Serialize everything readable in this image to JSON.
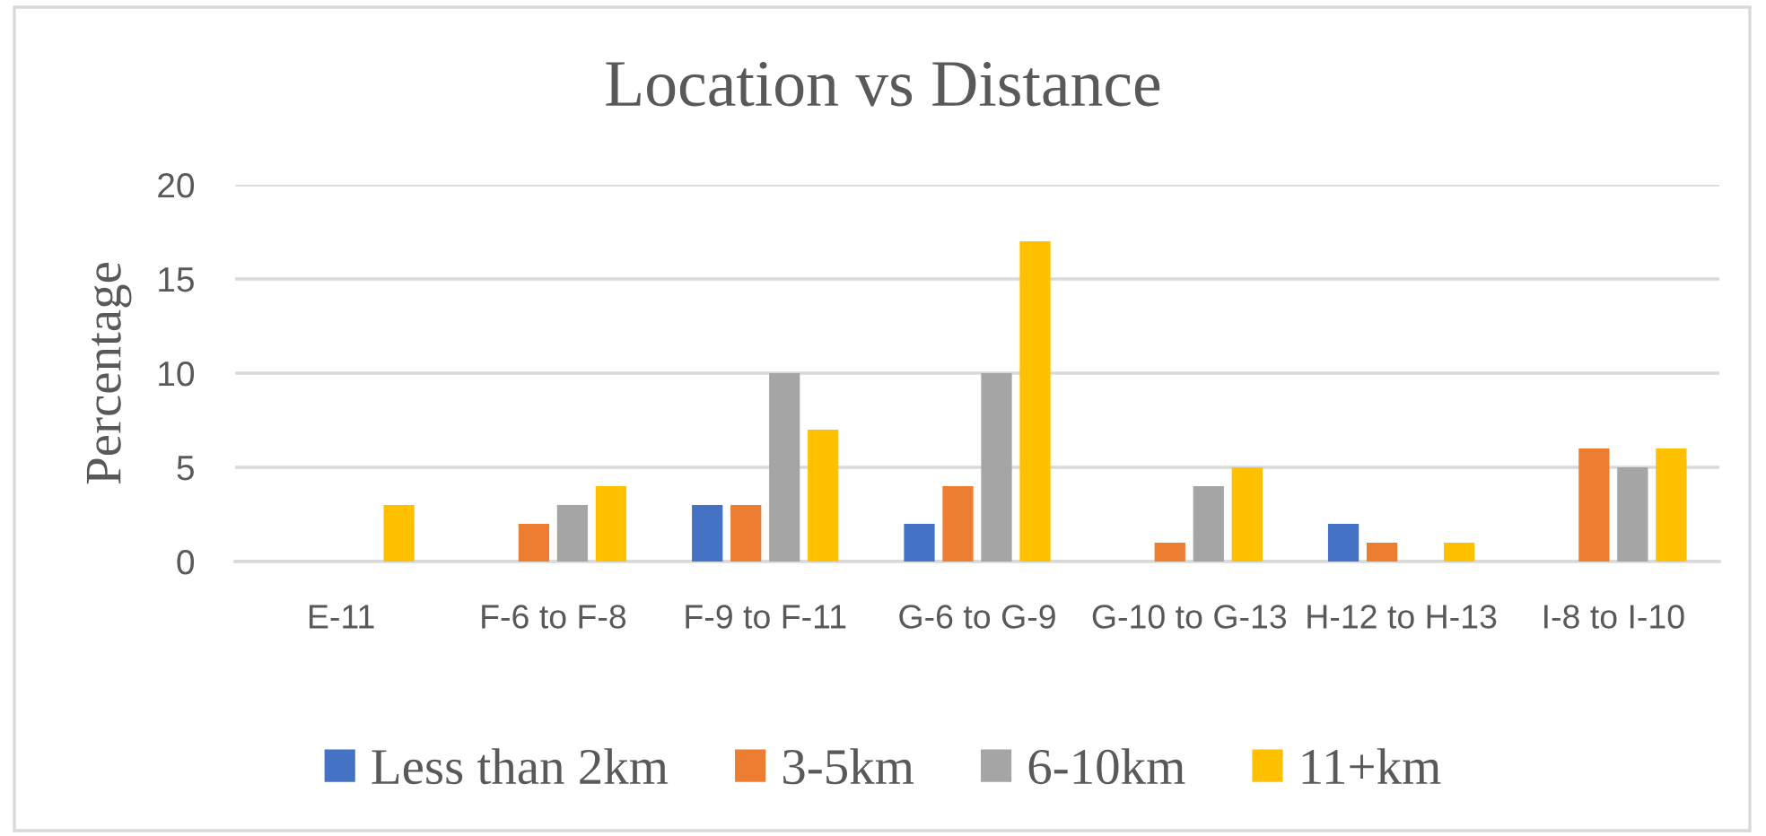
{
  "chart_data": {
    "type": "bar",
    "title": "Location vs Distance",
    "ylabel": "Percentage",
    "categories": [
      "E-11",
      "F-6 to F-8",
      "F-9 to F-11",
      "G-6 to G-9",
      "G-10 to G-13",
      "H-12 to H-13",
      "I-8 to I-10"
    ],
    "series": [
      {
        "name": "Less than 2km",
        "color": "#4472c4",
        "values": [
          null,
          null,
          3,
          2,
          null,
          2,
          null
        ]
      },
      {
        "name": "3-5km",
        "color": "#ed7d31",
        "values": [
          null,
          2,
          3,
          4,
          1,
          1,
          6
        ]
      },
      {
        "name": "6-10km",
        "color": "#a5a5a5",
        "values": [
          null,
          3,
          10,
          10,
          4,
          null,
          5
        ]
      },
      {
        "name": "11+km",
        "color": "#ffc000",
        "values": [
          3,
          4,
          7,
          17,
          5,
          1,
          6
        ]
      }
    ],
    "ylim": [
      0,
      20
    ],
    "yticks": [
      0,
      5,
      10,
      15,
      20
    ],
    "grid": "y",
    "legend": "bottom"
  }
}
